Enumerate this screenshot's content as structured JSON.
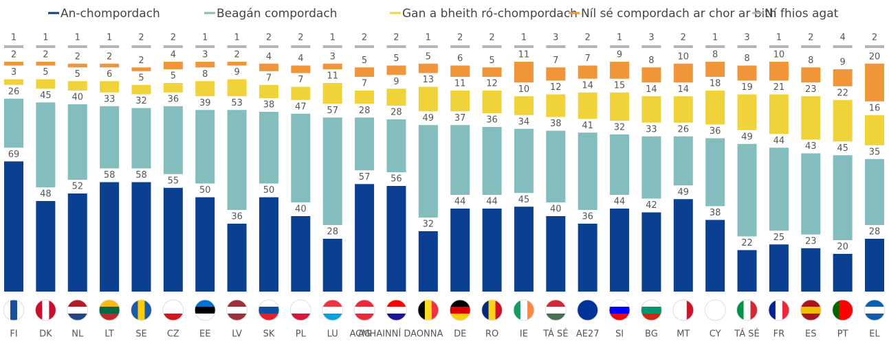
{
  "chart_data": {
    "type": "bar",
    "stacked": true,
    "categories": [
      "FI",
      "DK",
      "NL",
      "LT",
      "SE",
      "CZ",
      "EE",
      "LV",
      "SK",
      "PL",
      "LU",
      "AG",
      "ACMHAINNÍ DAONNA",
      null,
      "DE",
      "RO",
      "IE",
      "TÁ SÉ",
      "AE27",
      "SI",
      "BG",
      "MT",
      "CY",
      "TÁ SÉ",
      "FR",
      "ES",
      "PT",
      "EL"
    ],
    "series": [
      {
        "name": "An-chompordach",
        "color": "#0a3f92",
        "values": [
          69,
          48,
          52,
          58,
          58,
          55,
          50,
          36,
          50,
          40,
          28,
          57,
          56,
          32,
          44,
          44,
          45,
          40,
          36,
          44,
          42,
          49,
          38,
          22,
          25,
          23,
          20,
          28
        ]
      },
      {
        "name": "Beagán compordach",
        "color": "#83bdbe",
        "values": [
          26,
          45,
          40,
          33,
          32,
          36,
          39,
          53,
          38,
          47,
          57,
          28,
          28,
          49,
          37,
          36,
          34,
          38,
          41,
          32,
          33,
          26,
          36,
          49,
          44,
          43,
          45,
          35
        ]
      },
      {
        "name": "Gan a bheith ró-chompordach",
        "color": "#f0d33a",
        "values": [
          3,
          5,
          5,
          6,
          5,
          5,
          8,
          9,
          7,
          7,
          11,
          7,
          9,
          13,
          11,
          12,
          10,
          12,
          14,
          15,
          14,
          14,
          18,
          19,
          21,
          23,
          22,
          16
        ]
      },
      {
        "name": "Níl sé compordach ar chor ar bith",
        "color": "#f1953a",
        "values": [
          2,
          2,
          2,
          2,
          2,
          4,
          3,
          2,
          4,
          4,
          3,
          5,
          5,
          5,
          6,
          5,
          11,
          7,
          7,
          9,
          8,
          10,
          8,
          8,
          10,
          8,
          9,
          20
        ]
      },
      {
        "name": "Ní fhios agat",
        "color": "#b4b4b4",
        "values": [
          1,
          1,
          1,
          1,
          2,
          2,
          1,
          1,
          2,
          2,
          1,
          2,
          2,
          1,
          2,
          2,
          1,
          3,
          2,
          1,
          3,
          2,
          1,
          3,
          1,
          2,
          4,
          2
        ]
      }
    ]
  }
}
